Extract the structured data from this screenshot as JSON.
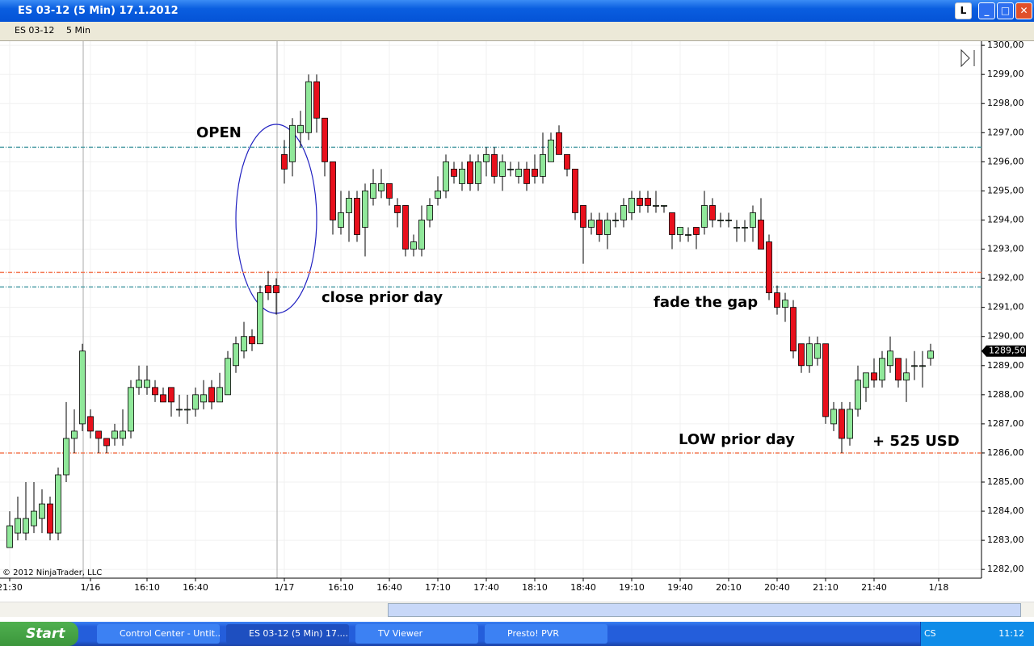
{
  "window": {
    "title": "ES 03-12 (5 Min)  17.1.2012",
    "button_label": "L"
  },
  "toolbar": {
    "instrument": "ES 03-12",
    "interval": "5 Min"
  },
  "chart_data": {
    "type": "candlestick",
    "open": [
      1282.75,
      1283.25,
      1283.25,
      1283.5,
      1283.75,
      1284.25,
      1283.25,
      1285.25,
      1286.5,
      1287,
      1287.25,
      1286.75,
      1286.5,
      1286.5,
      1286.5,
      1286.75,
      1288.25,
      1288.25,
      1288.25,
      1288,
      1288.25,
      1287.5,
      1287.5,
      1287.5,
      1287.75,
      1288.25,
      1287.75,
      1288,
      1289,
      1289.5,
      1290,
      1289.75,
      1291.75,
      1291.75,
      1296.25,
      1296,
      1297,
      1297,
      1298.75,
      1297.5,
      1296,
      1293.75,
      1294.25,
      1294.75,
      1293.75,
      1294.75,
      1295,
      1295.25,
      1294.5,
      1294.5,
      1293,
      1293,
      1294,
      1294.75,
      1295,
      1295.75,
      1295.25,
      1296,
      1295.25,
      1296,
      1296.25,
      1295.5,
      1295.75,
      1295.5,
      1295.75,
      1295.75,
      1295.5,
      1296,
      1297,
      1296.25,
      1295.75,
      1294.5,
      1293.75,
      1294,
      1293.5,
      1294,
      1294,
      1294.25,
      1294.75,
      1294.75,
      1294.5,
      1294.5,
      1294.25,
      1293.5,
      1293.5,
      1293.75,
      1293.75,
      1294.5,
      1294,
      1294,
      1293.75,
      1293.75,
      1293.75,
      1294,
      1293.25,
      1291.5,
      1291,
      1291,
      1289.75,
      1289,
      1289.25,
      1289.75,
      1287,
      1287.5,
      1286.5,
      1287.5,
      1288.25,
      1288.75,
      1288.5,
      1289,
      1289.25,
      1288.5,
      1289,
      1289,
      1289.25
    ],
    "high": [
      1284,
      1284.5,
      1285,
      1285,
      1284.75,
      1284.5,
      1285.5,
      1287.75,
      1287.5,
      1289.75,
      1287.5,
      1286.75,
      1286.5,
      1287,
      1287.5,
      1288.5,
      1289,
      1289,
      1288.5,
      1288.25,
      1288.25,
      1288,
      1288,
      1288.25,
      1288.5,
      1288.5,
      1288.75,
      1289.5,
      1290,
      1290.5,
      1290.25,
      1291.75,
      1292.25,
      1292,
      1296.75,
      1297.5,
      1297.75,
      1299,
      1299,
      1297.5,
      1296,
      1295,
      1295,
      1295,
      1295.25,
      1295.75,
      1295.75,
      1295.25,
      1294.75,
      1294.5,
      1293.5,
      1294.5,
      1294.75,
      1295.5,
      1296.25,
      1296,
      1296,
      1296.25,
      1296.25,
      1296.5,
      1296.5,
      1296.25,
      1296,
      1296,
      1296,
      1296.25,
      1297,
      1297,
      1297.25,
      1296.25,
      1295.75,
      1294.5,
      1294.25,
      1294.25,
      1294.25,
      1294.25,
      1294.75,
      1295,
      1295,
      1295,
      1295,
      1294.5,
      1294.25,
      1293.75,
      1293.75,
      1293.75,
      1295,
      1294.75,
      1294.25,
      1294.25,
      1294,
      1294,
      1294.5,
      1294.75,
      1293.5,
      1291.75,
      1291.5,
      1291.25,
      1289.75,
      1290,
      1290,
      1289.75,
      1287.75,
      1287.75,
      1287.75,
      1289,
      1288.75,
      1289.25,
      1289.5,
      1290,
      1289.25,
      1289.25,
      1289.5,
      1289.5,
      1289.75
    ],
    "low": [
      1282.75,
      1283,
      1283,
      1283.25,
      1283.25,
      1283,
      1283,
      1285,
      1286,
      1286.75,
      1286.5,
      1286,
      1286,
      1286.25,
      1286.25,
      1286.5,
      1288,
      1288,
      1287.75,
      1287.75,
      1287.25,
      1287.25,
      1287,
      1287.25,
      1287.5,
      1287.5,
      1287.75,
      1288,
      1288.75,
      1289.25,
      1289.5,
      1289.75,
      1291.25,
      1290.75,
      1295.25,
      1295.5,
      1296.5,
      1296.75,
      1297,
      1295.5,
      1293.5,
      1293.5,
      1293.25,
      1293.25,
      1292.75,
      1294.5,
      1294.75,
      1294.5,
      1293.75,
      1292.75,
      1292.75,
      1292.75,
      1293.75,
      1294.5,
      1294.75,
      1295.25,
      1295,
      1295,
      1295,
      1295.5,
      1295.25,
      1295,
      1295.5,
      1295.25,
      1295,
      1295.25,
      1295.25,
      1296,
      1296.25,
      1295.5,
      1294,
      1292.5,
      1293.5,
      1293.25,
      1293,
      1293.75,
      1293.75,
      1294,
      1294.25,
      1294.25,
      1294.25,
      1294.25,
      1293,
      1293.25,
      1293.25,
      1293,
      1293.5,
      1293.75,
      1293.75,
      1293.75,
      1293.25,
      1293.25,
      1293.25,
      1293,
      1291.25,
      1290.75,
      1290.5,
      1289.25,
      1288.75,
      1288.75,
      1289,
      1287,
      1286.75,
      1286,
      1286.25,
      1287.25,
      1287.75,
      1288.25,
      1288.25,
      1288.75,
      1288.25,
      1287.75,
      1288.5,
      1288.25,
      1289
    ],
    "close": [
      1283.5,
      1283.75,
      1283.75,
      1284,
      1284.25,
      1283.25,
      1285.25,
      1286.5,
      1286.75,
      1289.5,
      1286.75,
      1286.5,
      1286.25,
      1286.75,
      1286.75,
      1288.25,
      1288.5,
      1288.5,
      1288,
      1287.75,
      1287.75,
      1287.5,
      1287.5,
      1288,
      1288,
      1287.75,
      1288.25,
      1289.25,
      1289.75,
      1290,
      1289.75,
      1291.5,
      1291.5,
      1291.5,
      1295.75,
      1297.25,
      1297.25,
      1298.75,
      1297.5,
      1296,
      1294,
      1294.25,
      1294.75,
      1293.5,
      1295,
      1295.25,
      1295.25,
      1294.75,
      1294.25,
      1293,
      1293.25,
      1294,
      1294.5,
      1295,
      1296,
      1295.5,
      1295.75,
      1295.25,
      1296,
      1296.25,
      1295.5,
      1296,
      1295.75,
      1295.75,
      1295.25,
      1295.5,
      1296.25,
      1296.75,
      1296.25,
      1295.75,
      1294.25,
      1293.75,
      1294,
      1293.5,
      1294,
      1294,
      1294.5,
      1294.75,
      1294.5,
      1294.5,
      1294.5,
      1294.5,
      1293.5,
      1293.75,
      1293.5,
      1293.5,
      1294.5,
      1294,
      1294,
      1294,
      1293.75,
      1293.75,
      1294.25,
      1293,
      1291.5,
      1291,
      1291.25,
      1289.5,
      1289,
      1289.75,
      1289.75,
      1287.25,
      1287.5,
      1286.5,
      1287.5,
      1288.5,
      1288.75,
      1288.5,
      1289.25,
      1289.5,
      1288.5,
      1288.75,
      1289,
      1289,
      1289.5
    ],
    "up_color": "#90e89a",
    "down_color": "#e8101c",
    "xlim": [
      -1.2,
      120.3
    ],
    "xticks": [
      {
        "value": 0,
        "label": "21:30"
      },
      {
        "value": 10,
        "label": "1/16"
      },
      {
        "value": 17,
        "label": "16:10"
      },
      {
        "value": 23,
        "label": "16:40"
      },
      {
        "value": 34,
        "label": "1/17"
      },
      {
        "value": 41,
        "label": "16:10"
      },
      {
        "value": 47,
        "label": "16:40"
      },
      {
        "value": 53,
        "label": "17:10"
      },
      {
        "value": 59,
        "label": "17:40"
      },
      {
        "value": 65,
        "label": "18:10"
      },
      {
        "value": 71,
        "label": "18:40"
      },
      {
        "value": 77,
        "label": "19:10"
      },
      {
        "value": 83,
        "label": "19:40"
      },
      {
        "value": 89,
        "label": "20:10"
      },
      {
        "value": 95,
        "label": "20:40"
      },
      {
        "value": 101,
        "label": "21:10"
      },
      {
        "value": 107,
        "label": "21:40"
      },
      {
        "value": 115,
        "label": "1/18"
      }
    ],
    "ylim": [
      1281.7,
      1300.17
    ],
    "yticks": [
      {
        "value": 1282,
        "label": "1282,00"
      },
      {
        "value": 1283,
        "label": "1283,00"
      },
      {
        "value": 1284,
        "label": "1284,00"
      },
      {
        "value": 1285,
        "label": "1285,00"
      },
      {
        "value": 1286,
        "label": "1286,00"
      },
      {
        "value": 1287,
        "label": "1287,00"
      },
      {
        "value": 1288,
        "label": "1288,00"
      },
      {
        "value": 1289,
        "label": "1289,00"
      },
      {
        "value": 1290,
        "label": "1290,00"
      },
      {
        "value": 1291,
        "label": "1291,00"
      },
      {
        "value": 1292,
        "label": "1292,00"
      },
      {
        "value": 1293,
        "label": "1293,00"
      },
      {
        "value": 1294,
        "label": "1294,00"
      },
      {
        "value": 1295,
        "label": "1295,00"
      },
      {
        "value": 1296,
        "label": "1296,00"
      },
      {
        "value": 1297,
        "label": "1297,00"
      },
      {
        "value": 1298,
        "label": "1298,00"
      },
      {
        "value": 1299,
        "label": "1299,00"
      },
      {
        "value": 1300,
        "label": "1300,00"
      }
    ],
    "grid": true,
    "hlines": [
      {
        "value": 1296.5,
        "color": "#4f9ea6"
      },
      {
        "value": 1292.2,
        "color": "#f47a55"
      },
      {
        "value": 1291.7,
        "color": "#4f9ea6"
      },
      {
        "value": 1286,
        "color": "#f47a55"
      }
    ],
    "last_price": {
      "value": 1289.5,
      "label": "1289,50"
    },
    "annotations": [
      "OPEN",
      "close prior day",
      "fade the gap",
      "LOW prior day",
      "+ 525 USD"
    ],
    "copyright": "© 2012 NinjaTrader, LLC"
  },
  "taskbar": {
    "start": "Start",
    "items": [
      "Control Center - Untit...",
      "ES 03-12 (5 Min)  17....",
      "TV Viewer",
      "Presto! PVR"
    ],
    "language": "CS",
    "clock": "11:12"
  }
}
